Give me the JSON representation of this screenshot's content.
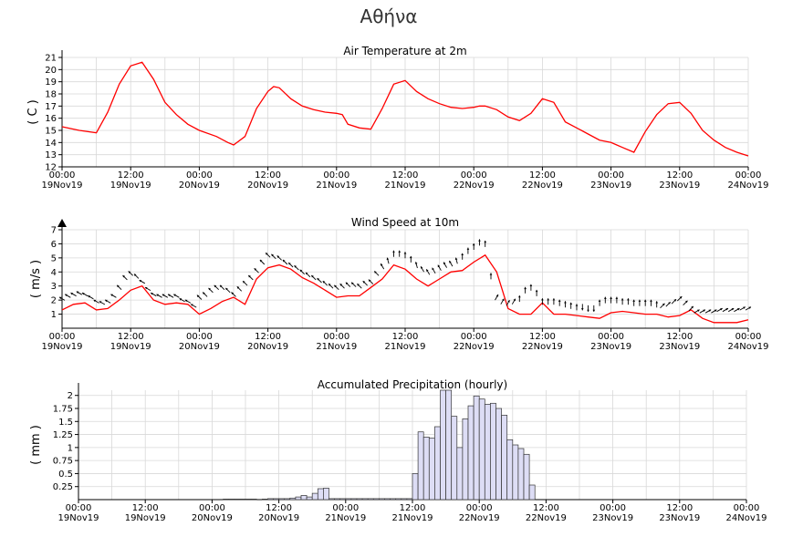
{
  "page": {
    "title": "Αθήνα"
  },
  "x_ticks": [
    [
      "00:00",
      "19Nov19"
    ],
    [
      "12:00",
      "19Nov19"
    ],
    [
      "00:00",
      "20Nov19"
    ],
    [
      "12:00",
      "20Nov19"
    ],
    [
      "00:00",
      "21Nov19"
    ],
    [
      "12:00",
      "21Nov19"
    ],
    [
      "00:00",
      "22Nov19"
    ],
    [
      "12:00",
      "22Nov19"
    ],
    [
      "00:00",
      "23Nov19"
    ],
    [
      "12:00",
      "23Nov19"
    ],
    [
      "00:00",
      "24Nov19"
    ]
  ],
  "chart_data": [
    {
      "type": "line",
      "title": "Air Temperature at 2m",
      "ylabel": "( C )",
      "xlim": [
        0,
        120
      ],
      "ylim": [
        12,
        21
      ],
      "yticks": [
        12,
        13,
        14,
        15,
        16,
        17,
        18,
        19,
        20,
        21
      ],
      "grid": true,
      "color": "#ff0000",
      "series": [
        {
          "x": [
            0,
            3,
            6,
            8,
            10,
            12,
            14,
            16,
            18,
            20,
            22,
            24,
            27,
            29,
            30,
            32,
            34,
            36,
            37,
            38,
            40,
            42,
            44,
            46,
            48,
            49,
            50,
            52,
            54,
            56,
            58,
            60,
            62,
            64,
            66,
            68,
            70,
            72,
            73,
            74,
            76,
            78,
            80,
            82,
            84,
            86,
            88,
            90,
            92,
            94,
            96,
            97,
            98,
            100,
            102,
            104,
            106,
            108,
            110,
            112,
            114,
            115,
            116,
            118,
            120
          ],
          "y": [
            15.3,
            15.0,
            14.8,
            16.5,
            18.8,
            20.3,
            20.6,
            19.2,
            17.3,
            16.3,
            15.5,
            15.0,
            14.5,
            14.0,
            13.8,
            14.5,
            16.8,
            18.2,
            18.6,
            18.5,
            17.6,
            17.0,
            16.7,
            16.5,
            16.4,
            16.3,
            15.5,
            15.2,
            15.1,
            16.8,
            18.8,
            19.1,
            18.2,
            17.6,
            17.2,
            16.9,
            16.8,
            16.9,
            17.0,
            17.0,
            16.7,
            16.1,
            15.8,
            16.4,
            17.6,
            17.3,
            15.7,
            15.2,
            14.7,
            14.2,
            14.0,
            13.8,
            13.6,
            13.2,
            14.9,
            16.3,
            17.2,
            17.3,
            16.4,
            15.0,
            14.2,
            13.9,
            13.6,
            13.2,
            12.9
          ]
        }
      ]
    },
    {
      "type": "line",
      "title": "Wind Speed at 10m",
      "ylabel": "( m/s )",
      "xlim": [
        0,
        120
      ],
      "ylim": [
        0,
        7
      ],
      "yticks": [
        1,
        2,
        3,
        4,
        5,
        6,
        7
      ],
      "grid": true,
      "color": "#ff0000",
      "series": [
        {
          "x": [
            0,
            2,
            4,
            6,
            8,
            10,
            12,
            14,
            16,
            18,
            20,
            22,
            24,
            26,
            28,
            30,
            32,
            34,
            36,
            38,
            40,
            42,
            44,
            46,
            48,
            50,
            52,
            54,
            56,
            58,
            60,
            62,
            64,
            66,
            68,
            70,
            72,
            74,
            76,
            78,
            80,
            82,
            84,
            86,
            88,
            90,
            92,
            94,
            96,
            98,
            100,
            102,
            104,
            106,
            108,
            110,
            112,
            114,
            116,
            118,
            120
          ],
          "y": [
            1.3,
            1.7,
            1.8,
            1.3,
            1.4,
            2.0,
            2.7,
            3.0,
            2.0,
            1.7,
            1.8,
            1.7,
            1.0,
            1.4,
            1.9,
            2.2,
            1.7,
            3.5,
            4.3,
            4.5,
            4.2,
            3.6,
            3.2,
            2.7,
            2.2,
            2.3,
            2.3,
            2.9,
            3.5,
            4.5,
            4.2,
            3.5,
            3.0,
            3.5,
            4.0,
            4.1,
            4.7,
            5.2,
            4.0,
            1.4,
            1.0,
            1.0,
            1.8,
            1.0,
            1.0,
            0.9,
            0.8,
            0.7,
            1.1,
            1.2,
            1.1,
            1.0,
            1.0,
            0.8,
            0.9,
            1.3,
            0.7,
            0.4,
            0.4,
            0.4,
            0.6
          ]
        },
        {
          "name": "wind vectors",
          "x": [
            0,
            1,
            2,
            3,
            4,
            5,
            6,
            7,
            8,
            9,
            10,
            11,
            12,
            13,
            14,
            15,
            16,
            17,
            18,
            19,
            20,
            21,
            22,
            23,
            24,
            25,
            26,
            27,
            28,
            29,
            30,
            31,
            32,
            33,
            34,
            35,
            36,
            37,
            38,
            39,
            40,
            41,
            42,
            43,
            44,
            45,
            46,
            47,
            48,
            49,
            50,
            51,
            52,
            53,
            54,
            55,
            56,
            57,
            58,
            59,
            60,
            61,
            62,
            63,
            64,
            65,
            66,
            67,
            68,
            69,
            70,
            71,
            72,
            73,
            74,
            75,
            76,
            77,
            78,
            79,
            80,
            81,
            82,
            83,
            84,
            85,
            86,
            87,
            88,
            89,
            90,
            91,
            92,
            93,
            94,
            95,
            96,
            97,
            98,
            99,
            100,
            101,
            102,
            103,
            104,
            105,
            106,
            107,
            108,
            109,
            110,
            111,
            112,
            113,
            114,
            115,
            116,
            117,
            118,
            119,
            120
          ],
          "y": [
            2.1,
            2.3,
            2.4,
            2.5,
            2.4,
            2.2,
            1.9,
            1.8,
            1.9,
            2.3,
            2.9,
            3.6,
            3.9,
            3.7,
            3.3,
            2.8,
            2.4,
            2.3,
            2.3,
            2.3,
            2.3,
            2.0,
            1.9,
            1.6,
            2.2,
            2.4,
            2.7,
            2.9,
            2.9,
            2.7,
            2.4,
            2.8,
            3.2,
            3.6,
            4.1,
            4.7,
            5.2,
            5.1,
            5.0,
            4.7,
            4.5,
            4.3,
            4.0,
            3.8,
            3.6,
            3.4,
            3.2,
            3.0,
            2.9,
            3.0,
            3.1,
            3.1,
            3.0,
            3.2,
            3.3,
            3.9,
            4.4,
            4.8,
            5.3,
            5.3,
            5.2,
            4.9,
            4.5,
            4.2,
            4.0,
            4.1,
            4.3,
            4.5,
            4.6,
            4.8,
            5.1,
            5.5,
            5.8,
            6.1,
            6.0,
            3.7,
            2.2,
            1.9,
            1.8,
            1.9,
            2.1,
            2.7,
            2.9,
            2.5,
            1.9,
            1.9,
            1.9,
            1.8,
            1.7,
            1.6,
            1.5,
            1.5,
            1.4,
            1.4,
            1.8,
            2.0,
            2.0,
            2.0,
            1.9,
            1.9,
            1.8,
            1.8,
            1.8,
            1.8,
            1.7,
            1.6,
            1.7,
            1.9,
            2.1,
            1.8,
            1.4,
            1.2,
            1.2,
            1.2,
            1.2,
            1.3,
            1.3,
            1.3,
            1.3,
            1.4,
            1.4
          ],
          "direction_deg": [
            300,
            300,
            300,
            300,
            300,
            300,
            300,
            300,
            300,
            300,
            315,
            315,
            315,
            315,
            300,
            300,
            300,
            300,
            300,
            300,
            300,
            300,
            300,
            300,
            315,
            315,
            315,
            315,
            315,
            315,
            315,
            315,
            315,
            315,
            315,
            315,
            315,
            315,
            315,
            315,
            315,
            315,
            315,
            315,
            315,
            315,
            315,
            315,
            315,
            315,
            315,
            315,
            315,
            315,
            315,
            315,
            330,
            345,
            0,
            0,
            0,
            0,
            345,
            330,
            330,
            330,
            330,
            330,
            330,
            345,
            0,
            0,
            0,
            0,
            0,
            0,
            30,
            30,
            30,
            30,
            0,
            0,
            0,
            0,
            0,
            0,
            0,
            0,
            0,
            0,
            0,
            180,
            180,
            180,
            0,
            0,
            0,
            0,
            0,
            0,
            0,
            0,
            0,
            0,
            0,
            45,
            45,
            45,
            45,
            45,
            45,
            60,
            60,
            60,
            60,
            60,
            60,
            60,
            60,
            60,
            60
          ]
        }
      ]
    },
    {
      "type": "bar",
      "title": "Accumulated Precipitation (hourly)",
      "ylabel": "( mm )",
      "xlim": [
        0,
        120
      ],
      "ylim": [
        0,
        2.1
      ],
      "yticks": [
        0.25,
        0.5,
        0.75,
        1,
        1.25,
        1.5,
        1.75,
        2
      ],
      "grid": true,
      "color": "#ddddf5",
      "x": [
        26,
        27,
        28,
        29,
        30,
        31,
        33,
        34,
        35,
        36,
        37,
        38,
        39,
        40,
        41,
        42,
        43,
        44,
        45,
        46,
        47,
        48,
        49,
        50,
        51,
        52,
        53,
        54,
        55,
        56,
        57,
        58,
        59,
        60,
        61,
        62,
        63,
        64,
        65,
        66,
        67,
        68,
        69,
        70,
        71,
        72,
        73,
        74,
        75,
        76,
        77,
        78,
        79,
        80,
        81
      ],
      "values": [
        0.01,
        0.01,
        0.01,
        0.01,
        0.01,
        0.01,
        0.01,
        0.02,
        0.02,
        0.02,
        0.02,
        0.03,
        0.05,
        0.08,
        0.05,
        0.12,
        0.21,
        0.22,
        0.02,
        0.02,
        0.02,
        0.02,
        0.02,
        0.02,
        0.02,
        0.02,
        0.02,
        0.02,
        0.02,
        0.02,
        0.02,
        0.02,
        0.02,
        0.5,
        1.3,
        1.2,
        1.18,
        1.4,
        2.1,
        2.1,
        1.6,
        1.0,
        1.55,
        1.8,
        1.99,
        1.93,
        1.83,
        1.85,
        1.75,
        1.62,
        1.15,
        1.05,
        0.98,
        0.87,
        0.28
      ]
    }
  ]
}
